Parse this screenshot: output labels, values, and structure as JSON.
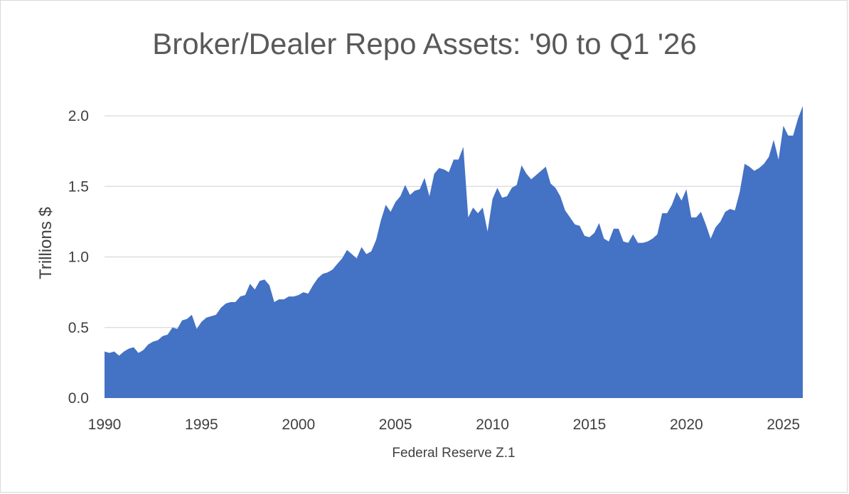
{
  "chart_data": {
    "type": "area",
    "title": "Broker/Dealer Repo Assets: '90 to Q1 '26",
    "ylabel": "Trillions $",
    "xlabel": "Federal Reserve Z.1",
    "ylim": [
      0,
      2.0
    ],
    "xlim": [
      1990,
      2026.0
    ],
    "y_ticks": [
      "0.0",
      "0.5",
      "1.0",
      "1.5",
      "2.0"
    ],
    "x_ticks": [
      "1990",
      "1995",
      "2000",
      "2005",
      "2010",
      "2015",
      "2020",
      "2025"
    ],
    "grid": "horizontal",
    "color": "#4472C4",
    "x": [
      1990.0,
      1990.25,
      1990.5,
      1990.75,
      1991.0,
      1991.25,
      1991.5,
      1991.75,
      1992.0,
      1992.25,
      1992.5,
      1992.75,
      1993.0,
      1993.25,
      1993.5,
      1993.75,
      1994.0,
      1994.25,
      1994.5,
      1994.75,
      1995.0,
      1995.25,
      1995.5,
      1995.75,
      1996.0,
      1996.25,
      1996.5,
      1996.75,
      1997.0,
      1997.25,
      1997.5,
      1997.75,
      1998.0,
      1998.25,
      1998.5,
      1998.75,
      1999.0,
      1999.25,
      1999.5,
      1999.75,
      2000.0,
      2000.25,
      2000.5,
      2000.75,
      2001.0,
      2001.25,
      2001.5,
      2001.75,
      2002.0,
      2002.25,
      2002.5,
      2002.75,
      2003.0,
      2003.25,
      2003.5,
      2003.75,
      2004.0,
      2004.25,
      2004.5,
      2004.75,
      2005.0,
      2005.25,
      2005.5,
      2005.75,
      2006.0,
      2006.25,
      2006.5,
      2006.75,
      2007.0,
      2007.25,
      2007.5,
      2007.75,
      2008.0,
      2008.25,
      2008.5,
      2008.75,
      2009.0,
      2009.25,
      2009.5,
      2009.75,
      2010.0,
      2010.25,
      2010.5,
      2010.75,
      2011.0,
      2011.25,
      2011.5,
      2011.75,
      2012.0,
      2012.25,
      2012.5,
      2012.75,
      2013.0,
      2013.25,
      2013.5,
      2013.75,
      2014.0,
      2014.25,
      2014.5,
      2014.75,
      2015.0,
      2015.25,
      2015.5,
      2015.75,
      2016.0,
      2016.25,
      2016.5,
      2016.75,
      2017.0,
      2017.25,
      2017.5,
      2017.75,
      2018.0,
      2018.25,
      2018.5,
      2018.75,
      2019.0,
      2019.25,
      2019.5,
      2019.75,
      2020.0,
      2020.25,
      2020.5,
      2020.75,
      2021.0,
      2021.25,
      2021.5,
      2021.75,
      2022.0,
      2022.25,
      2022.5,
      2022.75,
      2023.0,
      2023.25,
      2023.5,
      2023.75,
      2024.0,
      2024.25,
      2024.5,
      2024.75,
      2025.0,
      2025.25,
      2025.5,
      2025.75,
      2026.0
    ],
    "values": [
      0.33,
      0.32,
      0.33,
      0.3,
      0.33,
      0.35,
      0.36,
      0.32,
      0.34,
      0.38,
      0.4,
      0.41,
      0.44,
      0.45,
      0.5,
      0.49,
      0.55,
      0.56,
      0.59,
      0.49,
      0.54,
      0.57,
      0.58,
      0.59,
      0.64,
      0.67,
      0.68,
      0.68,
      0.72,
      0.73,
      0.81,
      0.77,
      0.83,
      0.84,
      0.8,
      0.68,
      0.7,
      0.7,
      0.72,
      0.72,
      0.73,
      0.75,
      0.74,
      0.8,
      0.85,
      0.88,
      0.89,
      0.91,
      0.95,
      0.99,
      1.05,
      1.02,
      0.99,
      1.07,
      1.02,
      1.04,
      1.12,
      1.26,
      1.37,
      1.32,
      1.39,
      1.43,
      1.51,
      1.44,
      1.47,
      1.48,
      1.56,
      1.43,
      1.59,
      1.63,
      1.62,
      1.6,
      1.69,
      1.69,
      1.78,
      1.28,
      1.35,
      1.31,
      1.35,
      1.18,
      1.41,
      1.49,
      1.42,
      1.43,
      1.49,
      1.51,
      1.65,
      1.59,
      1.55,
      1.58,
      1.61,
      1.64,
      1.52,
      1.49,
      1.43,
      1.33,
      1.28,
      1.23,
      1.22,
      1.15,
      1.14,
      1.17,
      1.24,
      1.13,
      1.11,
      1.2,
      1.2,
      1.11,
      1.1,
      1.16,
      1.1,
      1.1,
      1.11,
      1.13,
      1.16,
      1.31,
      1.31,
      1.37,
      1.46,
      1.4,
      1.48,
      1.28,
      1.28,
      1.32,
      1.23,
      1.13,
      1.21,
      1.25,
      1.32,
      1.34,
      1.33,
      1.46,
      1.66,
      1.64,
      1.61,
      1.63,
      1.66,
      1.71,
      1.83,
      1.69,
      1.93,
      1.86,
      1.86,
      1.98,
      2.07
    ]
  }
}
